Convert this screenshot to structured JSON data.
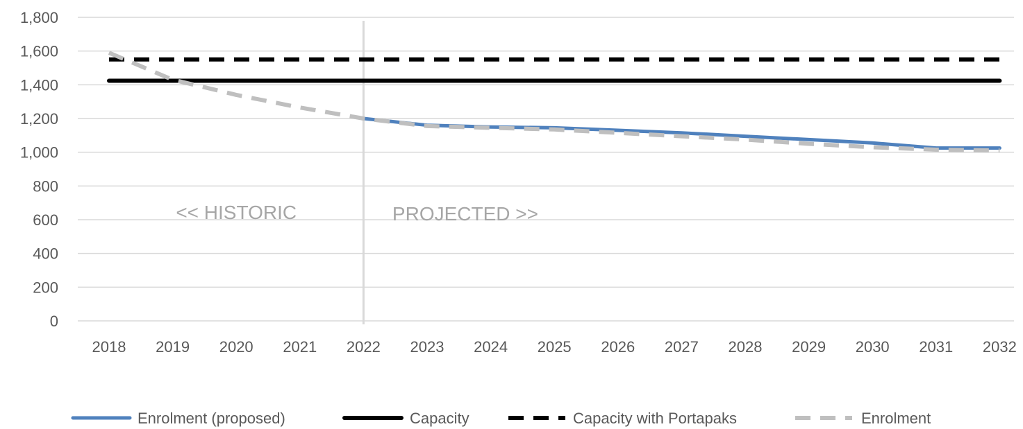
{
  "chart_data": {
    "type": "line",
    "title": "",
    "xlabel": "",
    "ylabel": "",
    "x": [
      "2018",
      "2019",
      "2020",
      "2021",
      "2022",
      "2023",
      "2024",
      "2025",
      "2026",
      "2027",
      "2028",
      "2029",
      "2030",
      "2031",
      "2032"
    ],
    "ylim": [
      0,
      1800
    ],
    "yticks": [
      0,
      200,
      400,
      600,
      800,
      1000,
      1200,
      1400,
      1600,
      1800
    ],
    "ytick_labels": [
      "0",
      "200",
      "400",
      "600",
      "800",
      "1,000",
      "1,200",
      "1,400",
      "1,600",
      "1,800"
    ],
    "grid": "horizontal",
    "legend_position": "bottom",
    "divider_at": "2022",
    "annotations": [
      {
        "text": "<< HISTORIC",
        "x": "2020",
        "y": 605
      },
      {
        "text": "PROJECTED >>",
        "x": "2023.6",
        "y": 595
      }
    ],
    "series": [
      {
        "name": "Enrolment (proposed)",
        "color": "#4f81bd",
        "style": "solid",
        "values": [
          null,
          null,
          null,
          null,
          1200,
          1160,
          1150,
          1145,
          1130,
          1115,
          1095,
          1075,
          1055,
          1025,
          1025
        ]
      },
      {
        "name": "Capacity",
        "color": "#000000",
        "style": "solid",
        "values": [
          1424,
          1424,
          1424,
          1424,
          1424,
          1424,
          1424,
          1424,
          1424,
          1424,
          1424,
          1424,
          1424,
          1424,
          1424
        ]
      },
      {
        "name": "Capacity with Portapaks",
        "color": "#000000",
        "style": "dashed",
        "values": [
          1550,
          1550,
          1550,
          1550,
          1550,
          1550,
          1550,
          1550,
          1550,
          1550,
          1550,
          1550,
          1550,
          1550,
          1550
        ]
      },
      {
        "name": "Enrolment",
        "color": "#bfbfbf",
        "style": "dashed",
        "values": [
          1590,
          1430,
          1340,
          1265,
          1200,
          1155,
          1145,
          1135,
          1115,
          1095,
          1075,
          1050,
          1030,
          1015,
          1010
        ]
      }
    ]
  }
}
